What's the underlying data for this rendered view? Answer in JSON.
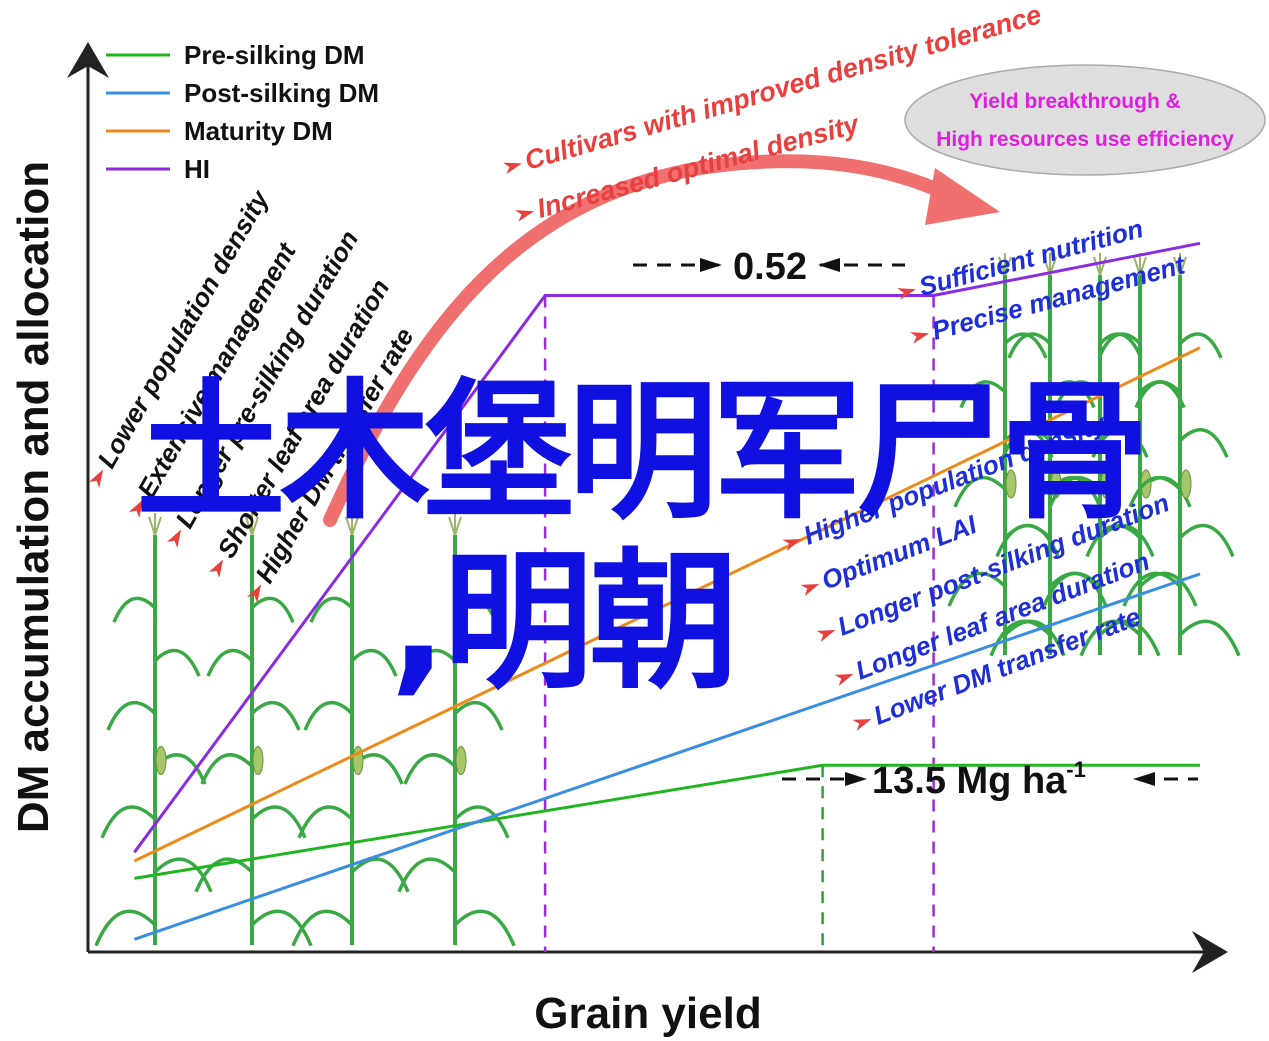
{
  "colors": {
    "pre_silking": "#22b522",
    "post_silking": "#3a8ede",
    "maturity": "#ee8a1a",
    "hi": "#8a2be2",
    "dashed_purple": "#9d2bd6",
    "dashed_green": "#22aa22",
    "arrow": "#f07070",
    "red_text": "#e8403e",
    "blue_text": "#1e2ed8",
    "magenta_text": "#e01ee0",
    "overlay": "#1010e0",
    "plant": "#3aa844"
  },
  "chart_data": {
    "type": "line",
    "xlabel": "Grain yield",
    "ylabel": "DM accumulation and allocation",
    "legend_position": "top-left",
    "series": [
      {
        "name": "Pre-silking DM",
        "key": "pre_silking",
        "points": [
          [
            0.04,
            0.08
          ],
          [
            0.66,
            0.21
          ],
          [
            1.0,
            0.21
          ]
        ]
      },
      {
        "name": "Post-silking DM",
        "key": "post_silking",
        "points": [
          [
            0.04,
            0.01
          ],
          [
            1.0,
            0.43
          ]
        ]
      },
      {
        "name": "Maturity DM",
        "key": "maturity",
        "points": [
          [
            0.04,
            0.1
          ],
          [
            1.0,
            0.69
          ]
        ]
      },
      {
        "name": "HI",
        "key": "hi",
        "points": [
          [
            0.04,
            0.11
          ],
          [
            0.41,
            0.75
          ],
          [
            0.76,
            0.75
          ],
          [
            1.0,
            0.81
          ]
        ]
      }
    ],
    "dashed_markers": [
      {
        "x": 0.41,
        "color": "dashed_purple",
        "top": 0.75
      },
      {
        "x": 0.76,
        "color": "dashed_purple",
        "top": 0.75
      },
      {
        "x": 0.66,
        "color": "dashed_green",
        "top": 0.21
      }
    ],
    "annotations": {
      "hi_value": "0.52",
      "yield_value": "13.5 Mg ha",
      "yield_superscript": "-1",
      "ellipse_line1": "Yield breakthrough &",
      "ellipse_line2": "High resources use efficiency",
      "arc_top": "Cultivars with improved density tolerance",
      "arc_red_1": "Cultivars with improved density tolerance",
      "arc_red_2": "Increased optimal density",
      "left_labels": [
        "Lower population density",
        "Extensive management",
        "Longer pre-silking duration",
        "Shorter leaf area duration",
        "Higher DM transfer rate"
      ],
      "right_top_labels": [
        "Sufficient nutrition",
        "Precise management"
      ],
      "right_labels": [
        "Higher population density",
        "Optimum LAI",
        "Longer post-silking duration",
        "Longer leaf area duration",
        "Lower DM transfer rate"
      ]
    }
  },
  "overlay": {
    "title": "土木堡明军尸骨",
    "subtitle": ",明朝"
  }
}
